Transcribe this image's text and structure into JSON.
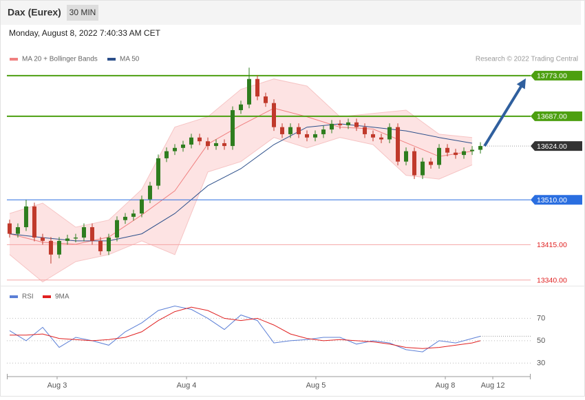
{
  "chart_data": [
    {
      "type": "candlestick",
      "title": "Dax (Eurex)",
      "timeframe": "30 MIN",
      "subtitle": "Monday, August 8, 2022 7:40:33 AM CET",
      "source": "Research © 2022 Trading Central",
      "xlim": [
        -0.33,
        63.08
      ],
      "ylim": [
        13328,
        13875
      ],
      "x": [
        0,
        1,
        2,
        3,
        4,
        5,
        6,
        7,
        8,
        9,
        10,
        11,
        12,
        13,
        14,
        15,
        16,
        17,
        18,
        19,
        20,
        21,
        22,
        23,
        24,
        25,
        26,
        27,
        28,
        29,
        30,
        31,
        32,
        33,
        34,
        35,
        36,
        37,
        38,
        39,
        40,
        41,
        42,
        43,
        44,
        45,
        46,
        47,
        48,
        49,
        50,
        51,
        52,
        53,
        54,
        55,
        56,
        57
      ],
      "open": [
        13460,
        13438,
        13452,
        13496,
        13430,
        13423,
        13394,
        13423,
        13428,
        13430,
        13452,
        13423,
        13401,
        13430,
        13467,
        13474,
        13481,
        13511,
        13540,
        13598,
        13613,
        13620,
        13627,
        13642,
        13634,
        13624,
        13630,
        13624,
        13700,
        13712,
        13766,
        13729,
        13715,
        13664,
        13649,
        13664,
        13649,
        13642,
        13649,
        13659,
        13671,
        13668,
        13674,
        13664,
        13649,
        13642,
        13638,
        13664,
        13591,
        13613,
        13562,
        13591,
        13584,
        13620,
        13610,
        13605,
        13613,
        13616
      ],
      "high": [
        13468,
        13460,
        13510,
        13504,
        13438,
        13431,
        13431,
        13436,
        13438,
        13460,
        13460,
        13431,
        13438,
        13475,
        13482,
        13489,
        13519,
        13548,
        13606,
        13621,
        13628,
        13635,
        13650,
        13650,
        13642,
        13638,
        13638,
        13708,
        13720,
        13790,
        13774,
        13737,
        13723,
        13672,
        13672,
        13672,
        13657,
        13657,
        13667,
        13679,
        13679,
        13682,
        13682,
        13672,
        13657,
        13650,
        13672,
        13672,
        13621,
        13621,
        13599,
        13599,
        13628,
        13628,
        13618,
        13621,
        13624,
        13632
      ],
      "low": [
        13430,
        13430,
        13444,
        13422,
        13415,
        13375,
        13386,
        13415,
        13420,
        13422,
        13415,
        13393,
        13393,
        13422,
        13459,
        13466,
        13473,
        13503,
        13532,
        13590,
        13605,
        13612,
        13619,
        13626,
        13616,
        13616,
        13616,
        13616,
        13692,
        13704,
        13721,
        13707,
        13656,
        13641,
        13641,
        13641,
        13634,
        13634,
        13641,
        13651,
        13660,
        13660,
        13656,
        13641,
        13634,
        13630,
        13630,
        13583,
        13583,
        13554,
        13554,
        13576,
        13576,
        13602,
        13597,
        13597,
        13605,
        13608
      ],
      "close": [
        13438,
        13452,
        13496,
        13430,
        13423,
        13394,
        13423,
        13428,
        13430,
        13452,
        13423,
        13401,
        13430,
        13467,
        13474,
        13481,
        13511,
        13540,
        13598,
        13613,
        13620,
        13627,
        13642,
        13634,
        13624,
        13630,
        13624,
        13700,
        13712,
        13766,
        13729,
        13715,
        13664,
        13649,
        13664,
        13649,
        13642,
        13649,
        13659,
        13671,
        13668,
        13674,
        13664,
        13649,
        13642,
        13638,
        13664,
        13591,
        13613,
        13562,
        13591,
        13584,
        13620,
        13610,
        13605,
        13613,
        13616,
        13624
      ],
      "up_color": "#2e7d1e",
      "down_color": "#c0392b",
      "bollinger": {
        "name": "MA 20 + Bollinger Bands",
        "color": "#f08080",
        "fill": "#fde3e3",
        "x": [
          0,
          4,
          8,
          12,
          16,
          20,
          24,
          28,
          32,
          36,
          40,
          44,
          48,
          52,
          56
        ],
        "upper": [
          13481,
          13503,
          13452,
          13467,
          13532,
          13664,
          13686,
          13744,
          13766,
          13751,
          13686,
          13693,
          13700,
          13649,
          13642
        ],
        "middle": [
          13438,
          13420,
          13416,
          13431,
          13478,
          13529,
          13628,
          13668,
          13704,
          13686,
          13664,
          13660,
          13631,
          13602,
          13613
        ],
        "lower": [
          13394,
          13336,
          13379,
          13394,
          13423,
          13394,
          13569,
          13591,
          13642,
          13620,
          13642,
          13627,
          13562,
          13554,
          13584
        ]
      },
      "ma50": {
        "name": "MA 50",
        "color": "#2c4f8a",
        "x": [
          0,
          4,
          8,
          12,
          16,
          20,
          24,
          28,
          32,
          36,
          40,
          44,
          48,
          52,
          56
        ],
        "values": [
          13438,
          13430,
          13423,
          13423,
          13438,
          13481,
          13540,
          13576,
          13627,
          13664,
          13671,
          13664,
          13656,
          13642,
          13630
        ]
      },
      "levels": [
        {
          "value": 13773,
          "label": "13773.00",
          "color": "#4c9f10",
          "style": "tag-line"
        },
        {
          "value": 13687,
          "label": "13687.00",
          "color": "#4c9f10",
          "style": "tag-line"
        },
        {
          "value": 13624,
          "label": "13624.00",
          "color": "#333333",
          "style": "tag-dotted"
        },
        {
          "value": 13510,
          "label": "13510.00",
          "color": "#2a6ee0",
          "style": "tag-line"
        },
        {
          "value": 13415,
          "label": "13415.00",
          "color": "#e02020",
          "style": "text-line"
        },
        {
          "value": 13340,
          "label": "13340.00",
          "color": "#e02020",
          "style": "text-line"
        }
      ]
    },
    {
      "type": "line",
      "xlim": [
        -0.33,
        63.08
      ],
      "ylim": [
        21,
        85
      ],
      "yticks": [
        30,
        50,
        70
      ],
      "xticks": [
        {
          "value": 5.75,
          "label": "Aug 3"
        },
        {
          "value": 21.42,
          "label": "Aug 4"
        },
        {
          "value": 37.08,
          "label": "Aug 5"
        },
        {
          "value": 52.75,
          "label": "Aug 8"
        },
        {
          "value": 58.5,
          "label": "Aug 12"
        }
      ],
      "x": [
        0,
        2,
        4,
        6,
        8,
        10,
        12,
        14,
        16,
        18,
        20,
        22,
        24,
        26,
        28,
        30,
        32,
        34,
        36,
        38,
        40,
        42,
        44,
        46,
        48,
        50,
        52,
        54,
        56,
        57
      ],
      "series": [
        {
          "name": "RSI",
          "color": "#5b7fd6",
          "values": [
            59,
            50,
            62,
            44,
            53,
            50,
            46,
            58,
            66,
            77,
            81,
            78,
            70,
            60,
            73,
            68,
            48,
            50,
            51,
            53,
            53,
            47,
            50,
            48,
            42,
            40,
            50,
            48,
            52,
            54
          ]
        },
        {
          "name": "9MA",
          "color": "#e02020",
          "values": [
            55,
            55,
            56,
            52,
            51,
            50,
            51,
            53,
            58,
            68,
            76,
            80,
            77,
            70,
            68,
            70,
            64,
            56,
            52,
            50,
            51,
            50,
            49,
            47,
            44,
            43,
            44,
            46,
            48,
            50
          ]
        }
      ]
    }
  ]
}
